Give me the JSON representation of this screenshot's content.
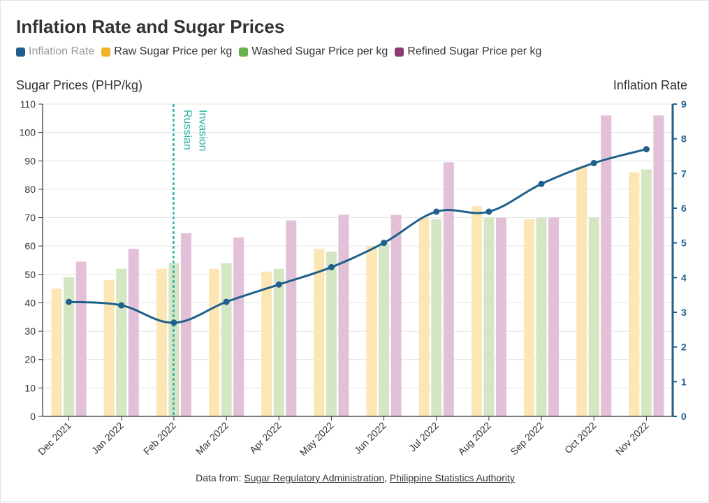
{
  "title": "Inflation Rate and Sugar Prices",
  "y_left_title": "Sugar Prices (PHP/kg)",
  "y_right_title": "Inflation Rate",
  "footer": {
    "prefix": "Data from: ",
    "source1": "Sugar Regulatory Administration",
    "separator": ", ",
    "source2": "Philippine Statistics Authority"
  },
  "chart_data": {
    "type": "bar",
    "categories": [
      "Dec 2021",
      "Jan 2022",
      "Feb 2022",
      "Mar 2022",
      "Apr 2022",
      "May 2022",
      "Jun 2022",
      "Jul 2022",
      "Aug 2022",
      "Sep 2022",
      "Oct 2022",
      "Nov 2022"
    ],
    "series": [
      {
        "name": "Inflation Rate",
        "kind": "line",
        "axis": "right",
        "color": "#1f5f8b",
        "values": [
          3.3,
          3.2,
          2.7,
          3.3,
          3.8,
          4.3,
          5.0,
          5.9,
          5.9,
          6.7,
          7.3,
          7.7
        ]
      },
      {
        "name": "Raw Sugar Price per kg",
        "kind": "bar",
        "axis": "left",
        "color": "#f0b429",
        "bar_color": "#fbe6b4",
        "values": [
          45,
          48,
          52,
          52,
          51,
          59,
          60,
          70,
          74,
          69.5,
          88,
          86
        ]
      },
      {
        "name": "Washed Sugar Price per kg",
        "kind": "bar",
        "axis": "left",
        "color": "#6ab04c",
        "bar_color": "#d4e6c4",
        "values": [
          49,
          52,
          54,
          54,
          52,
          58,
          61,
          69.5,
          70,
          70,
          70,
          87
        ]
      },
      {
        "name": "Refined Sugar Price per kg",
        "kind": "bar",
        "axis": "left",
        "color": "#8e3b72",
        "bar_color": "#e2c1d8",
        "values": [
          54.5,
          59,
          64.5,
          63,
          69,
          71,
          71,
          89.5,
          70,
          70,
          106,
          106
        ]
      }
    ],
    "y_left": {
      "min": 0,
      "max": 110,
      "ticks": [
        0,
        10,
        20,
        30,
        40,
        50,
        60,
        70,
        80,
        90,
        100,
        110
      ]
    },
    "y_right": {
      "min": 0,
      "max": 9,
      "ticks": [
        0,
        1,
        2,
        3,
        4,
        5,
        6,
        7,
        8,
        9
      ]
    },
    "annotation": {
      "category": "Feb 2022",
      "lines": [
        "Russian",
        "Invasion"
      ],
      "color": "#2ab3a6"
    },
    "grid": true,
    "legend_position": "top-left"
  }
}
